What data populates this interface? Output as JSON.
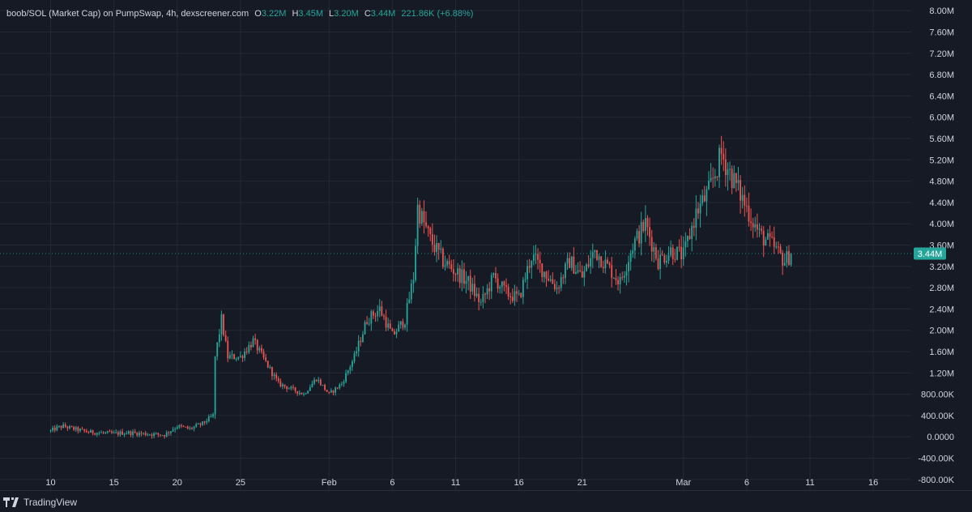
{
  "legend": {
    "symbol": "boob/SOL (Market Cap) on PumpSwap, 4h, dexscreener.com",
    "open_label": "O",
    "open": "3.22M",
    "high_label": "H",
    "high": "3.45M",
    "low_label": "L",
    "low": "3.20M",
    "close_label": "C",
    "close": "3.44M",
    "change": "221.86K (+6.88%)"
  },
  "branding": {
    "name": "TradingView"
  },
  "colors": {
    "background": "#161a25",
    "grid": "#242833",
    "up": "#26a69a",
    "down": "#ef5350",
    "axis_text": "#d1d4dc",
    "price_badge": "#26a69a"
  },
  "chart_data": {
    "type": "candlestick",
    "title": "boob/SOL (Market Cap) on PumpSwap, 4h, dexscreener.com",
    "interval": "4h",
    "ylim": [
      -1000000,
      8200000
    ],
    "y_ticks": [
      {
        "value": 8000000,
        "label": "8.00M"
      },
      {
        "value": 7600000,
        "label": "7.60M"
      },
      {
        "value": 7200000,
        "label": "7.20M"
      },
      {
        "value": 6800000,
        "label": "6.80M"
      },
      {
        "value": 6400000,
        "label": "6.40M"
      },
      {
        "value": 6000000,
        "label": "6.00M"
      },
      {
        "value": 5600000,
        "label": "5.60M"
      },
      {
        "value": 5200000,
        "label": "5.20M"
      },
      {
        "value": 4800000,
        "label": "4.80M"
      },
      {
        "value": 4400000,
        "label": "4.40M"
      },
      {
        "value": 4000000,
        "label": "4.00M"
      },
      {
        "value": 3600000,
        "label": "3.60M"
      },
      {
        "value": 3200000,
        "label": "3.20M"
      },
      {
        "value": 2800000,
        "label": "2.80M"
      },
      {
        "value": 2400000,
        "label": "2.40M"
      },
      {
        "value": 2000000,
        "label": "2.00M"
      },
      {
        "value": 1600000,
        "label": "1.60M"
      },
      {
        "value": 1200000,
        "label": "1.20M"
      },
      {
        "value": 800000,
        "label": "800.00K"
      },
      {
        "value": 400000,
        "label": "400.00K"
      },
      {
        "value": 0,
        "label": "0.0000"
      },
      {
        "value": -400000,
        "label": "-400.00K"
      },
      {
        "value": -800000,
        "label": "-800.00K"
      }
    ],
    "x_ticks": [
      {
        "date": "2025-01-10",
        "label": "10"
      },
      {
        "date": "2025-01-15",
        "label": "15"
      },
      {
        "date": "2025-01-20",
        "label": "20"
      },
      {
        "date": "2025-01-25",
        "label": "25"
      },
      {
        "date": "2025-02-01",
        "label": "Feb"
      },
      {
        "date": "2025-02-06",
        "label": "6"
      },
      {
        "date": "2025-02-11",
        "label": "11"
      },
      {
        "date": "2025-02-16",
        "label": "16"
      },
      {
        "date": "2025-02-21",
        "label": "21"
      },
      {
        "date": "2025-03-01",
        "label": "Mar"
      },
      {
        "date": "2025-03-06",
        "label": "6"
      },
      {
        "date": "2025-03-11",
        "label": "11"
      },
      {
        "date": "2025-03-16",
        "label": "16"
      }
    ],
    "x_range": [
      "2025-01-06",
      "2025-03-19"
    ],
    "current_price": {
      "value": 3440000,
      "label": "3.44M"
    },
    "trend": [
      [
        "2025-01-10",
        110000
      ],
      [
        "2025-01-10T12",
        170000
      ],
      [
        "2025-01-11",
        200000
      ],
      [
        "2025-01-12",
        140000
      ],
      [
        "2025-01-13",
        90000
      ],
      [
        "2025-01-15",
        60000
      ],
      [
        "2025-01-16",
        80000
      ],
      [
        "2025-01-18",
        50000
      ],
      [
        "2025-01-19",
        40000
      ],
      [
        "2025-01-20",
        200000
      ],
      [
        "2025-01-21",
        150000
      ],
      [
        "2025-01-22",
        250000
      ],
      [
        "2025-01-22T20",
        400000
      ],
      [
        "2025-01-23",
        1500000
      ],
      [
        "2025-01-23T12",
        2200000
      ],
      [
        "2025-01-24",
        1500000
      ],
      [
        "2025-01-25",
        1500000
      ],
      [
        "2025-01-26",
        1800000
      ],
      [
        "2025-01-27",
        1400000
      ],
      [
        "2025-01-28",
        1000000
      ],
      [
        "2025-01-29",
        900000
      ],
      [
        "2025-01-30",
        800000
      ],
      [
        "2025-01-31",
        1100000
      ],
      [
        "2025-02-01",
        800000
      ],
      [
        "2025-02-02",
        1000000
      ],
      [
        "2025-02-03",
        1500000
      ],
      [
        "2025-02-04",
        2200000
      ],
      [
        "2025-02-05",
        2400000
      ],
      [
        "2025-02-06",
        1900000
      ],
      [
        "2025-02-07",
        2200000
      ],
      [
        "2025-02-07T16",
        3000000
      ],
      [
        "2025-02-08",
        4300000
      ],
      [
        "2025-02-09",
        3700000
      ],
      [
        "2025-02-10",
        3300000
      ],
      [
        "2025-02-11",
        3100000
      ],
      [
        "2025-02-12",
        2900000
      ],
      [
        "2025-02-13",
        2500000
      ],
      [
        "2025-02-14",
        3000000
      ],
      [
        "2025-02-15",
        2700000
      ],
      [
        "2025-02-16",
        2600000
      ],
      [
        "2025-02-17",
        3400000
      ],
      [
        "2025-02-18",
        3100000
      ],
      [
        "2025-02-19",
        2800000
      ],
      [
        "2025-02-20",
        3300000
      ],
      [
        "2025-02-21",
        3000000
      ],
      [
        "2025-02-22",
        3500000
      ],
      [
        "2025-02-23",
        3200000
      ],
      [
        "2025-02-24",
        2900000
      ],
      [
        "2025-02-25",
        3600000
      ],
      [
        "2025-02-26",
        4000000
      ],
      [
        "2025-02-27",
        3300000
      ],
      [
        "2025-02-28",
        3500000
      ],
      [
        "2025-03-01",
        3400000
      ],
      [
        "2025-03-02",
        4200000
      ],
      [
        "2025-03-03",
        4600000
      ],
      [
        "2025-03-04",
        5300000
      ],
      [
        "2025-03-05",
        4800000
      ],
      [
        "2025-03-06",
        4300000
      ],
      [
        "2025-03-07",
        3800000
      ],
      [
        "2025-03-08",
        3600000
      ],
      [
        "2025-03-09",
        3300000
      ],
      [
        "2025-03-09T12",
        3440000
      ]
    ]
  }
}
